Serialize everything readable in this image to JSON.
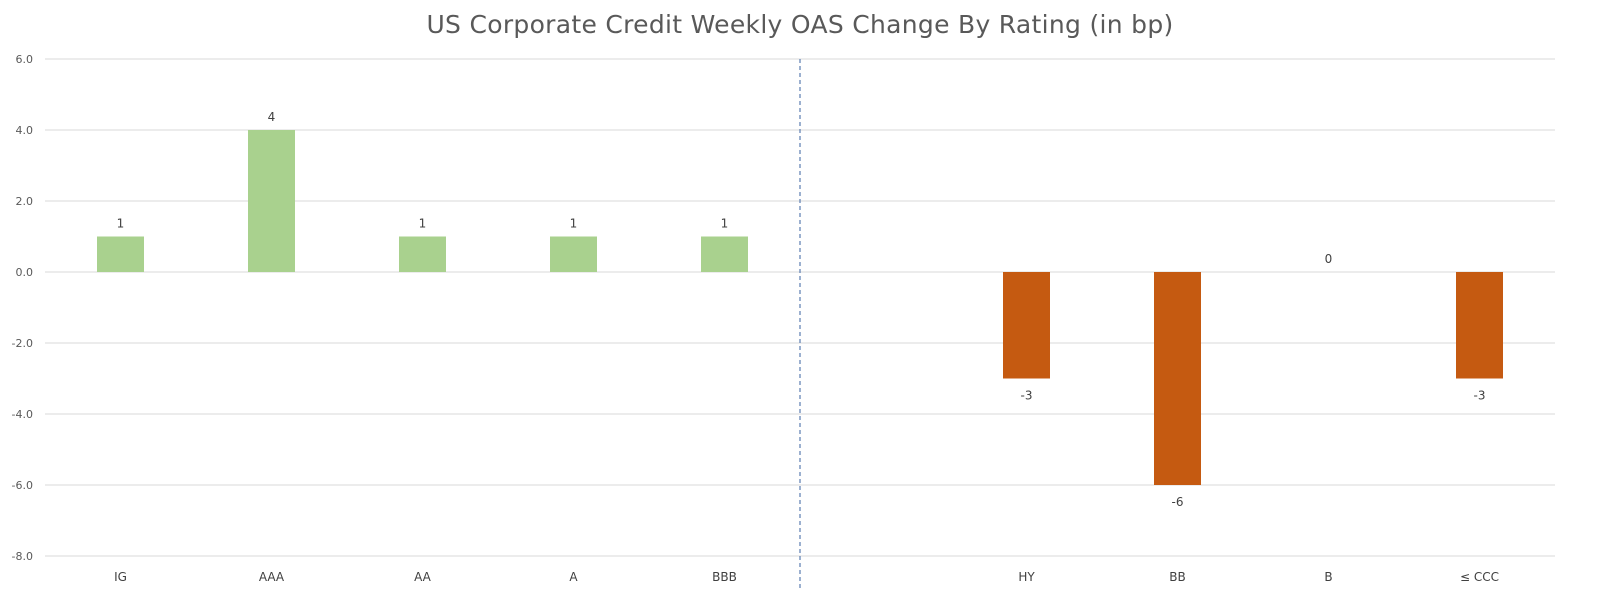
{
  "chart_data": {
    "type": "bar",
    "title": "US Corporate Credit Weekly OAS Change By Rating (in bp)",
    "xlabel": "",
    "ylabel": "",
    "ylim": [
      -8,
      6
    ],
    "yticks": [
      6,
      4,
      2,
      0,
      -2,
      -4,
      -6,
      -8
    ],
    "ytick_labels": [
      "6.0",
      "4.0",
      "2.0",
      "0.0",
      "-2.0",
      "-4.0",
      "-6.0",
      "-8.0"
    ],
    "grid": true,
    "legend": "none",
    "categories": [
      "IG",
      "AAA",
      "AA",
      "A",
      "BBB",
      "",
      "HY",
      "BB",
      "B",
      "≤ CCC"
    ],
    "values": [
      1,
      4,
      1,
      1,
      1,
      null,
      -3,
      -6,
      0,
      -3
    ],
    "data_labels": [
      "1",
      "4",
      "1",
      "1",
      "1",
      "",
      "-3",
      "-6",
      "0",
      "-3"
    ],
    "separator_after_category_index": 4,
    "colors": {
      "positive": "#A9D18E",
      "negative": "#C55A11",
      "grid": "#D9D9D9",
      "separator": "#5B7DB1"
    }
  }
}
